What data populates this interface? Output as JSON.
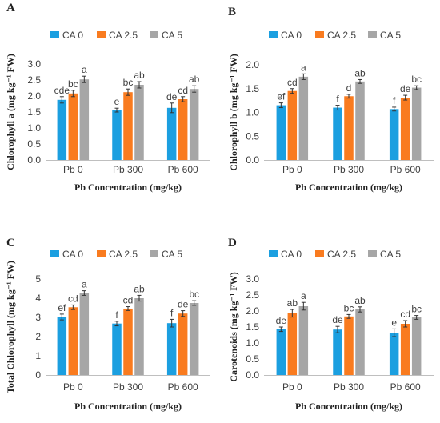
{
  "colors": {
    "CA 0": "#1b9fe0",
    "CA 2.5": "#f97b1f",
    "CA 5": "#a6a6a6",
    "axis": "#bfbfbf",
    "text": "#404040"
  },
  "chart_data": [
    {
      "panel": "A",
      "type": "bar",
      "ylabel": "Chlorophyll a (mg kg⁻¹ FW)",
      "xlabel": "Pb Concentration (mg/kg)",
      "categories": [
        "Pb 0",
        "Pb 300",
        "Pb 600"
      ],
      "ylim": [
        0,
        3.0
      ],
      "yticks": [
        "0.0",
        "0.5",
        "1.0",
        "1.5",
        "2.0",
        "2.5",
        "3.0"
      ],
      "legend": "top",
      "series": [
        {
          "name": "CA 0",
          "values": [
            1.88,
            1.56,
            1.63
          ],
          "errors": [
            0.1,
            0.06,
            0.15
          ],
          "letters": [
            "cde",
            "e",
            "de"
          ]
        },
        {
          "name": "CA 2.5",
          "values": [
            2.08,
            2.12,
            1.9
          ],
          "errors": [
            0.1,
            0.1,
            0.08
          ],
          "letters": [
            "bc",
            "bc",
            "cd"
          ]
        },
        {
          "name": "CA 5",
          "values": [
            2.52,
            2.35,
            2.22
          ],
          "errors": [
            0.1,
            0.1,
            0.1
          ],
          "letters": [
            "a",
            "ab",
            "ab"
          ]
        }
      ]
    },
    {
      "panel": "B",
      "type": "bar",
      "ylabel": "Chlorophyll b (mg kg⁻¹ FW)",
      "xlabel": "Pb Concentration (mg/kg)",
      "categories": [
        "Pb 0",
        "Pb 300",
        "Pb 600"
      ],
      "ylim": [
        0,
        2.0
      ],
      "yticks": [
        "0.0",
        "0.5",
        "1.0",
        "1.5",
        "2.0"
      ],
      "legend": "top",
      "series": [
        {
          "name": "CA 0",
          "values": [
            1.15,
            1.1,
            1.07
          ],
          "errors": [
            0.05,
            0.05,
            0.04
          ],
          "letters": [
            "ef",
            "f",
            "f"
          ]
        },
        {
          "name": "CA 2.5",
          "values": [
            1.45,
            1.34,
            1.31
          ],
          "errors": [
            0.05,
            0.04,
            0.05
          ],
          "letters": [
            "cd",
            "d",
            "de"
          ]
        },
        {
          "name": "CA 5",
          "values": [
            1.75,
            1.65,
            1.52
          ],
          "errors": [
            0.06,
            0.04,
            0.04
          ],
          "letters": [
            "a",
            "ab",
            "bc"
          ]
        }
      ]
    },
    {
      "panel": "C",
      "type": "bar",
      "ylabel": "Total Chlorophyll (mg kg⁻¹ FW)",
      "xlabel": "Pb Concentration (mg/kg)",
      "categories": [
        "Pb 0",
        "Pb 300",
        "Pb 600"
      ],
      "ylim": [
        0,
        5
      ],
      "yticks": [
        "0",
        "1",
        "2",
        "3",
        "4",
        "5"
      ],
      "legend": "top",
      "series": [
        {
          "name": "CA 0",
          "values": [
            3.02,
            2.68,
            2.7
          ],
          "errors": [
            0.15,
            0.12,
            0.2
          ],
          "letters": [
            "ef",
            "f",
            "f"
          ]
        },
        {
          "name": "CA 2.5",
          "values": [
            3.53,
            3.46,
            3.2
          ],
          "errors": [
            0.12,
            0.1,
            0.15
          ],
          "letters": [
            "cd",
            "cd",
            "de"
          ]
        },
        {
          "name": "CA 5",
          "values": [
            4.27,
            4.0,
            3.75
          ],
          "errors": [
            0.12,
            0.15,
            0.12
          ],
          "letters": [
            "a",
            "ab",
            "bc"
          ]
        }
      ]
    },
    {
      "panel": "D",
      "type": "bar",
      "ylabel": "Carotenoids (mg kg⁻¹ FW)",
      "xlabel": "Pb Concentration (mg/kg)",
      "categories": [
        "Pb 0",
        "Pb 300",
        "Pb 600"
      ],
      "ylim": [
        0,
        3.0
      ],
      "yticks": [
        "0.0",
        "0.5",
        "1.0",
        "1.5",
        "2.0",
        "2.5",
        "3.0"
      ],
      "legend": "top",
      "series": [
        {
          "name": "CA 0",
          "values": [
            1.43,
            1.42,
            1.32
          ],
          "errors": [
            0.07,
            0.1,
            0.12
          ],
          "letters": [
            "de",
            "de",
            "e"
          ]
        },
        {
          "name": "CA 2.5",
          "values": [
            1.93,
            1.83,
            1.6
          ],
          "errors": [
            0.12,
            0.06,
            0.1
          ],
          "letters": [
            "ab",
            "bc",
            "cd"
          ]
        },
        {
          "name": "CA 5",
          "values": [
            2.15,
            2.05,
            1.8
          ],
          "errors": [
            0.12,
            0.08,
            0.06
          ],
          "letters": [
            "a",
            "ab",
            "bc"
          ]
        }
      ]
    }
  ]
}
